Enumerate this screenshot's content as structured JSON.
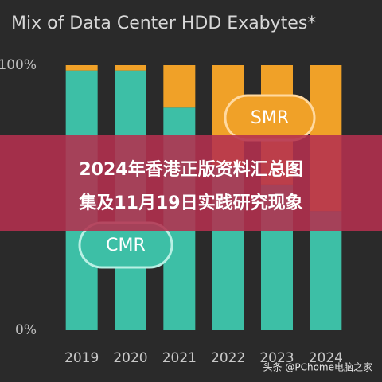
{
  "chart_data": {
    "type": "stacked-bar",
    "title": "Mix of Data Center HDD Exabytes*",
    "categories": [
      "2019",
      "2020",
      "2021",
      "2022",
      "2023",
      "2024"
    ],
    "series": [
      {
        "name": "CMR",
        "color": "#3dbfa6",
        "values": [
          98,
          98,
          84,
          62,
          55,
          45
        ]
      },
      {
        "name": "SMR",
        "color": "#f0a128",
        "values": [
          2,
          2,
          16,
          38,
          45,
          55
        ]
      }
    ],
    "ylim": [
      0,
      100
    ],
    "yticks": [
      {
        "value": 0,
        "label": "0%"
      },
      {
        "value": 100,
        "label": "100%"
      }
    ]
  },
  "overlay": {
    "lines": [
      "2024年香港正版资料汇总图",
      "集及11月19日实践研究现象"
    ],
    "watermark": "头条 @PChome电脑之家"
  }
}
